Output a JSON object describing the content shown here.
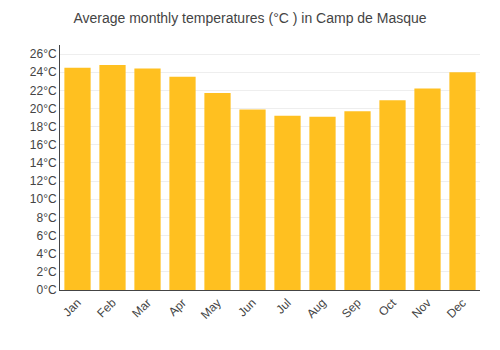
{
  "chart_data": {
    "type": "bar",
    "title": "Average monthly temperatures (°C ) in Camp de Masque",
    "categories": [
      "Jan",
      "Feb",
      "Mar",
      "Apr",
      "May",
      "Jun",
      "Jul",
      "Aug",
      "Sep",
      "Oct",
      "Nov",
      "Dec"
    ],
    "values": [
      24.5,
      24.8,
      24.4,
      23.5,
      21.7,
      19.9,
      19.2,
      19.1,
      19.7,
      20.9,
      22.2,
      24.0
    ],
    "color": "#FFC020",
    "ylim": [
      0,
      27
    ],
    "yticks": [
      {
        "value": 0,
        "label": "0°C"
      },
      {
        "value": 2,
        "label": "2°C"
      },
      {
        "value": 4,
        "label": "4°C"
      },
      {
        "value": 6,
        "label": "6°C"
      },
      {
        "value": 8,
        "label": "8°C"
      },
      {
        "value": 10,
        "label": "10°C"
      },
      {
        "value": 12,
        "label": "12°C"
      },
      {
        "value": 14,
        "label": "14°C"
      },
      {
        "value": 16,
        "label": "16°C"
      },
      {
        "value": 18,
        "label": "18°C"
      },
      {
        "value": 20,
        "label": "20°C"
      },
      {
        "value": 22,
        "label": "22°C"
      },
      {
        "value": 24,
        "label": "24°C"
      },
      {
        "value": 26,
        "label": "26°C"
      }
    ],
    "grid": true
  }
}
